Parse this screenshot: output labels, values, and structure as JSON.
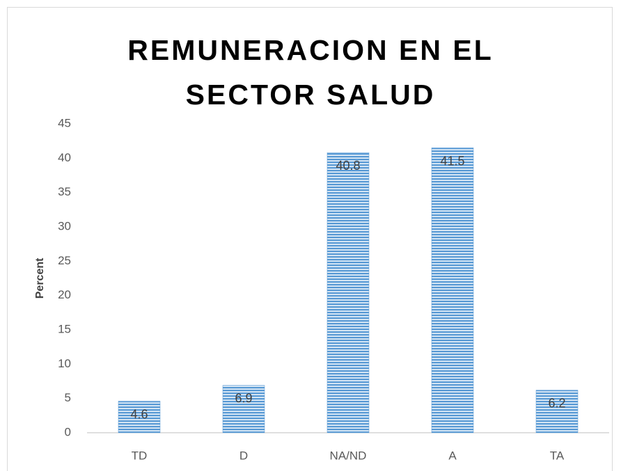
{
  "chart_data": {
    "type": "bar",
    "title": "REMUNERACION EN EL SECTOR SALUD",
    "y_label": "Percent",
    "categories": [
      "TD",
      "D",
      "NA/ND",
      "A",
      "TA"
    ],
    "values": [
      4.6,
      6.9,
      40.8,
      41.5,
      6.2
    ],
    "color": "#5b9bd5",
    "ylim": [
      0,
      45
    ],
    "yticks": [
      0,
      5,
      10,
      15,
      20,
      25,
      30,
      35,
      40,
      45
    ],
    "grid": false
  }
}
